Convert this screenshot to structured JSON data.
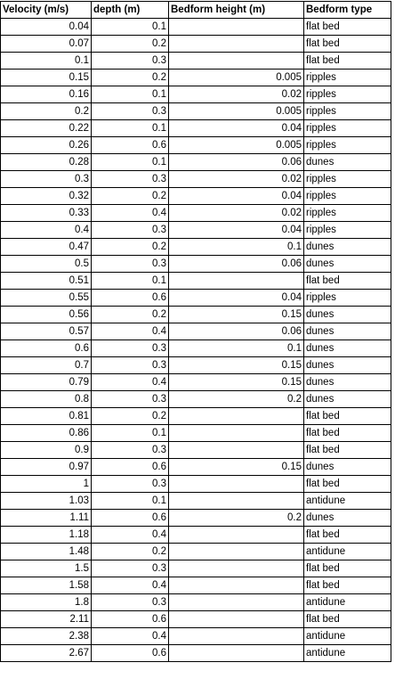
{
  "headers": [
    "Velocity (m/s)",
    "depth (m)",
    "Bedform height (m)",
    "Bedform type"
  ],
  "rows": [
    [
      "0.04",
      "0.1",
      "",
      "flat bed"
    ],
    [
      "0.07",
      "0.2",
      "",
      "flat bed"
    ],
    [
      "0.1",
      "0.3",
      "",
      "flat bed"
    ],
    [
      "0.15",
      "0.2",
      "0.005",
      "ripples"
    ],
    [
      "0.16",
      "0.1",
      "0.02",
      "ripples"
    ],
    [
      "0.2",
      "0.3",
      "0.005",
      "ripples"
    ],
    [
      "0.22",
      "0.1",
      "0.04",
      "ripples"
    ],
    [
      "0.26",
      "0.6",
      "0.005",
      "ripples"
    ],
    [
      "0.28",
      "0.1",
      "0.06",
      "dunes"
    ],
    [
      "0.3",
      "0.3",
      "0.02",
      "ripples"
    ],
    [
      "0.32",
      "0.2",
      "0.04",
      "ripples"
    ],
    [
      "0.33",
      "0.4",
      "0.02",
      "ripples"
    ],
    [
      "0.4",
      "0.3",
      "0.04",
      "ripples"
    ],
    [
      "0.47",
      "0.2",
      "0.1",
      "dunes"
    ],
    [
      "0.5",
      "0.3",
      "0.06",
      "dunes"
    ],
    [
      "0.51",
      "0.1",
      "",
      "flat bed"
    ],
    [
      "0.55",
      "0.6",
      "0.04",
      "ripples"
    ],
    [
      "0.56",
      "0.2",
      "0.15",
      "dunes"
    ],
    [
      "0.57",
      "0.4",
      "0.06",
      "dunes"
    ],
    [
      "0.6",
      "0.3",
      "0.1",
      "dunes"
    ],
    [
      "0.7",
      "0.3",
      "0.15",
      "dunes"
    ],
    [
      "0.79",
      "0.4",
      "0.15",
      "dunes"
    ],
    [
      "0.8",
      "0.3",
      "0.2",
      "dunes"
    ],
    [
      "0.81",
      "0.2",
      "",
      "flat bed"
    ],
    [
      "0.86",
      "0.1",
      "",
      "flat bed"
    ],
    [
      "0.9",
      "0.3",
      "",
      "flat bed"
    ],
    [
      "0.97",
      "0.6",
      "0.15",
      "dunes"
    ],
    [
      "1",
      "0.3",
      "",
      "flat bed"
    ],
    [
      "1.03",
      "0.1",
      "",
      "antidune"
    ],
    [
      "1.11",
      "0.6",
      "0.2",
      "dunes"
    ],
    [
      "1.18",
      "0.4",
      "",
      "flat bed"
    ],
    [
      "1.48",
      "0.2",
      "",
      "antidune"
    ],
    [
      "1.5",
      "0.3",
      "",
      "flat bed"
    ],
    [
      "1.58",
      "0.4",
      "",
      "flat bed"
    ],
    [
      "1.8",
      "0.3",
      "",
      "antidune"
    ],
    [
      "2.11",
      "0.6",
      "",
      "flat bed"
    ],
    [
      "2.38",
      "0.4",
      "",
      "antidune"
    ],
    [
      "2.67",
      "0.6",
      "",
      "antidune"
    ]
  ]
}
